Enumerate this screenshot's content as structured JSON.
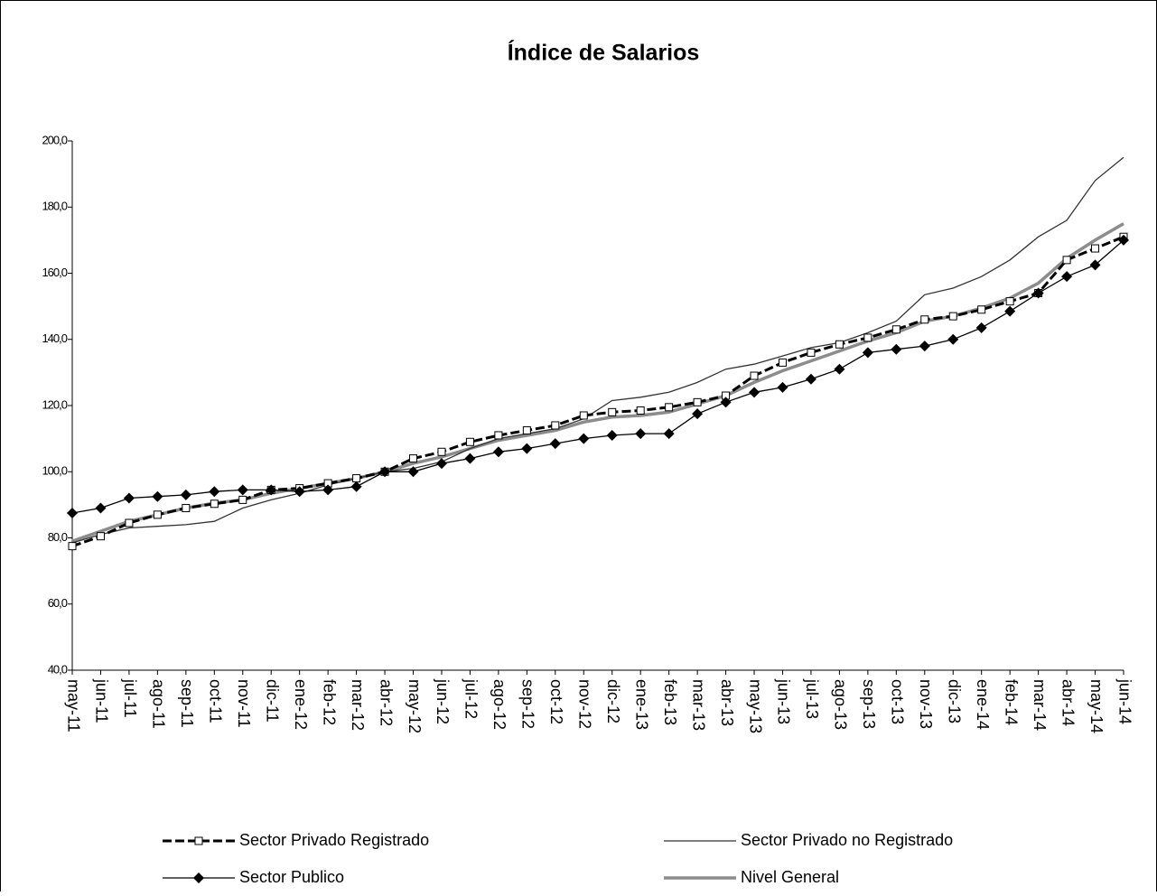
{
  "chart_data": {
    "type": "line",
    "title": "Índice de Salarios",
    "categories": [
      "may-11",
      "jun-11",
      "jul-11",
      "ago-11",
      "sep-11",
      "oct-11",
      "nov-11",
      "dic-11",
      "ene-12",
      "feb-12",
      "mar-12",
      "abr-12",
      "may-12",
      "jun-12",
      "jul-12",
      "ago-12",
      "sep-12",
      "oct-12",
      "nov-12",
      "dic-12",
      "ene-13",
      "feb-13",
      "mar-13",
      "abr-13",
      "may-13",
      "jun-13",
      "jul-13",
      "ago-13",
      "sep-13",
      "oct-13",
      "nov-13",
      "dic-13",
      "ene-14",
      "feb-14",
      "mar-14",
      "abr-14",
      "may-14",
      "jun-14"
    ],
    "ylim": [
      40,
      200
    ],
    "yticks": [
      {
        "value": 40,
        "label": "40,0"
      },
      {
        "value": 60,
        "label": "60,0"
      },
      {
        "value": 80,
        "label": "80,0"
      },
      {
        "value": 100,
        "label": "100,0"
      },
      {
        "value": 120,
        "label": "120,0"
      },
      {
        "value": 140,
        "label": "140,0"
      },
      {
        "value": 160,
        "label": "160,0"
      },
      {
        "value": 180,
        "label": "180,0"
      },
      {
        "value": 200,
        "label": "200,0"
      }
    ],
    "grid": false,
    "legend": "bottom",
    "series": [
      {
        "name": "Sector Privado Registrado",
        "color": "#000000",
        "line_style": "dashed",
        "marker": "square",
        "values": [
          77.5,
          80.5,
          84.5,
          87,
          89,
          90.3,
          91.5,
          94.5,
          95,
          96.5,
          98,
          100,
          104,
          106,
          109,
          111,
          112.5,
          114,
          117,
          118,
          118.5,
          119.5,
          121,
          123,
          129,
          133,
          136,
          138.5,
          140.5,
          143,
          146,
          147,
          149,
          151.5,
          154,
          164,
          167.5,
          171
        ]
      },
      {
        "name": "Sector Privado no Registrado",
        "color": "#333333",
        "line_style": "solid",
        "marker": "none",
        "values": [
          78.5,
          81,
          83,
          83.5,
          84,
          85,
          89,
          91.5,
          93.5,
          96,
          98,
          100,
          101,
          103,
          107,
          110,
          111.5,
          113,
          116,
          121.5,
          122.5,
          124,
          127,
          131,
          132.5,
          135,
          137.5,
          139,
          142,
          145.5,
          153.5,
          155.5,
          159,
          164,
          171,
          176,
          188,
          195
        ]
      },
      {
        "name": "Sector Publico",
        "color": "#000000",
        "line_style": "solid",
        "marker": "diamond",
        "values": [
          87.5,
          89,
          92,
          92.5,
          93,
          94,
          94.5,
          94.5,
          94,
          94.5,
          95.5,
          100,
          100,
          102.5,
          104,
          106,
          107,
          108.5,
          110,
          111,
          111.5,
          111.5,
          117.5,
          121,
          124,
          125.5,
          128,
          131,
          136,
          137,
          138,
          140,
          143.5,
          148.5,
          154,
          159,
          162.5,
          170
        ]
      },
      {
        "name": "Nivel General",
        "color": "#8c8c8c",
        "line_style": "thick",
        "marker": "none",
        "values": [
          79,
          82,
          85,
          87,
          89,
          90.5,
          91.5,
          93.5,
          95,
          96.5,
          98,
          100,
          102.5,
          104.5,
          107,
          109.5,
          111,
          112.5,
          115,
          116.5,
          117,
          118,
          120.5,
          123,
          127,
          130.5,
          133.5,
          136.5,
          139.5,
          142,
          145.5,
          147,
          149.5,
          152.5,
          157,
          164.5,
          170,
          175
        ]
      }
    ]
  }
}
